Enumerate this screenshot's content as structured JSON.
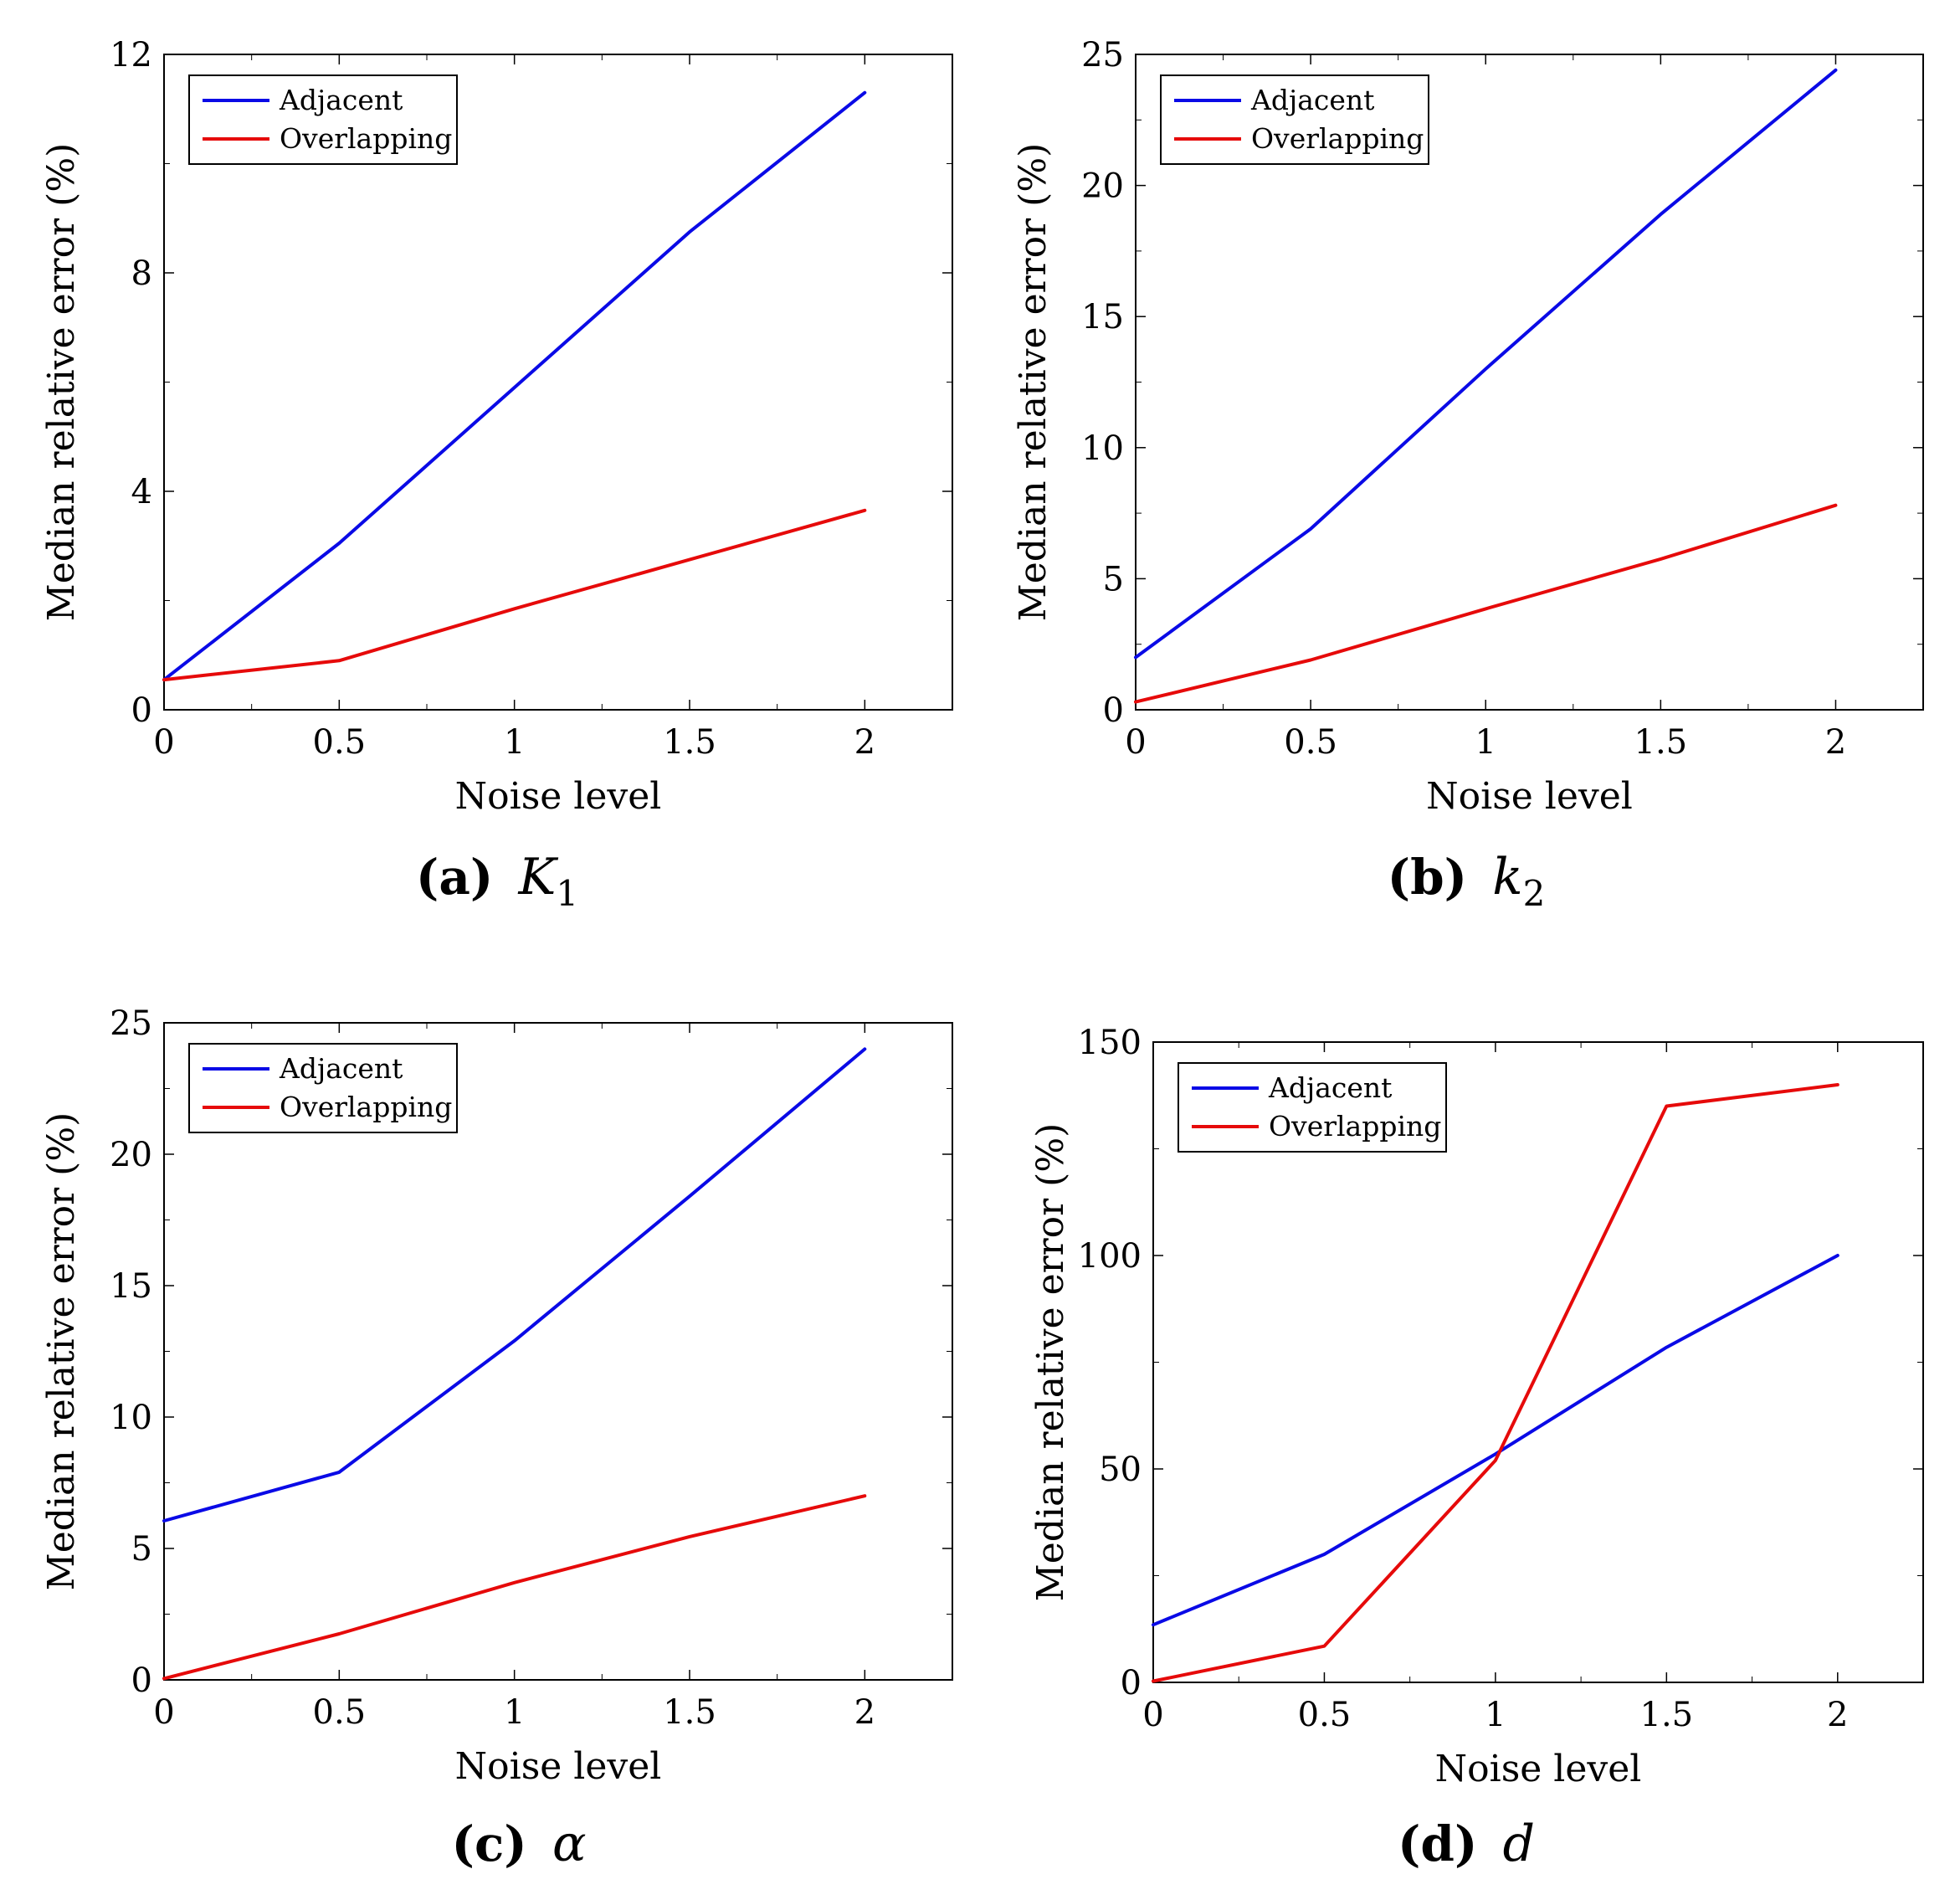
{
  "colors": {
    "adjacent": "#0a0ae6",
    "overlapping": "#e60a0a"
  },
  "chart_data": [
    {
      "type": "line",
      "caption_tag": "(a)",
      "caption_symbol": "K",
      "caption_subscript": "1",
      "xlabel": "Noise level",
      "ylabel": "Median relative error (%)",
      "xlim": [
        0,
        2.25
      ],
      "ylim": [
        0,
        12
      ],
      "xticks": [
        0,
        0.5,
        1,
        1.5,
        2
      ],
      "xtick_labels": [
        "0",
        "0.5",
        "1",
        "1.5",
        "2"
      ],
      "yticks": [
        0,
        4,
        8,
        12
      ],
      "ytick_labels": [
        "0",
        "4",
        "8",
        "12"
      ],
      "yminor": [
        2,
        6,
        10
      ],
      "legend_position": "top-left",
      "x": [
        0,
        0.5,
        1,
        1.5,
        2
      ],
      "series": [
        {
          "name": "Adjacent",
          "color": "#0a0ae6",
          "values": [
            0.55,
            3.05,
            5.9,
            8.75,
            11.3
          ]
        },
        {
          "name": "Overlapping",
          "color": "#e60a0a",
          "values": [
            0.55,
            0.9,
            1.85,
            2.75,
            3.65
          ]
        }
      ]
    },
    {
      "type": "line",
      "caption_tag": "(b)",
      "caption_symbol": "k",
      "caption_subscript": "2",
      "xlabel": "Noise level",
      "ylabel": "Median relative error (%)",
      "xlim": [
        0,
        2.25
      ],
      "ylim": [
        0,
        25
      ],
      "xticks": [
        0,
        0.5,
        1,
        1.5,
        2
      ],
      "xtick_labels": [
        "0",
        "0.5",
        "1",
        "1.5",
        "2"
      ],
      "yticks": [
        0,
        5,
        10,
        15,
        20,
        25
      ],
      "ytick_labels": [
        "0",
        "5",
        "10",
        "15",
        "20",
        "25"
      ],
      "yminor": [
        2.5,
        7.5,
        12.5,
        17.5,
        22.5
      ],
      "legend_position": "top-left",
      "x": [
        0,
        0.5,
        1,
        1.5,
        2
      ],
      "series": [
        {
          "name": "Adjacent",
          "color": "#0a0ae6",
          "values": [
            2.0,
            6.9,
            13.0,
            18.9,
            24.4
          ]
        },
        {
          "name": "Overlapping",
          "color": "#e60a0a",
          "values": [
            0.3,
            1.9,
            3.85,
            5.75,
            7.8
          ]
        }
      ]
    },
    {
      "type": "line",
      "caption_tag": "(c)",
      "caption_symbol": "α",
      "caption_subscript": "",
      "xlabel": "Noise level",
      "ylabel": "Median relative error (%)",
      "xlim": [
        0,
        2.25
      ],
      "ylim": [
        0,
        25
      ],
      "xticks": [
        0,
        0.5,
        1,
        1.5,
        2
      ],
      "xtick_labels": [
        "0",
        "0.5",
        "1",
        "1.5",
        "2"
      ],
      "yticks": [
        0,
        5,
        10,
        15,
        20,
        25
      ],
      "ytick_labels": [
        "0",
        "5",
        "10",
        "15",
        "20",
        "25"
      ],
      "yminor": [
        2.5,
        7.5,
        12.5,
        17.5,
        22.5
      ],
      "legend_position": "top-left",
      "x": [
        0,
        0.5,
        1,
        1.5,
        2
      ],
      "series": [
        {
          "name": "Adjacent",
          "color": "#0a0ae6",
          "values": [
            6.05,
            7.9,
            12.9,
            18.4,
            24.0
          ]
        },
        {
          "name": "Overlapping",
          "color": "#e60a0a",
          "values": [
            0.05,
            1.75,
            3.7,
            5.45,
            7.0
          ]
        }
      ]
    },
    {
      "type": "line",
      "caption_tag": "(d)",
      "caption_symbol": "d",
      "caption_subscript": "",
      "xlabel": "Noise level",
      "ylabel": "Median relative error (%)",
      "xlim": [
        0,
        2.25
      ],
      "ylim": [
        0,
        150
      ],
      "xticks": [
        0,
        0.5,
        1,
        1.5,
        2
      ],
      "xtick_labels": [
        "0",
        "0.5",
        "1",
        "1.5",
        "2"
      ],
      "yticks": [
        0,
        50,
        100,
        150
      ],
      "ytick_labels": [
        "0",
        "50",
        "100",
        "150"
      ],
      "yminor": [
        25,
        75,
        125
      ],
      "legend_position": "top-left",
      "x": [
        0,
        0.5,
        1,
        1.5,
        2
      ],
      "series": [
        {
          "name": "Adjacent",
          "color": "#0a0ae6",
          "values": [
            13.5,
            30.0,
            53.5,
            78.5,
            100.0
          ]
        },
        {
          "name": "Overlapping",
          "color": "#e60a0a",
          "values": [
            0.3,
            8.5,
            52.0,
            135.0,
            140.0
          ]
        }
      ]
    }
  ]
}
